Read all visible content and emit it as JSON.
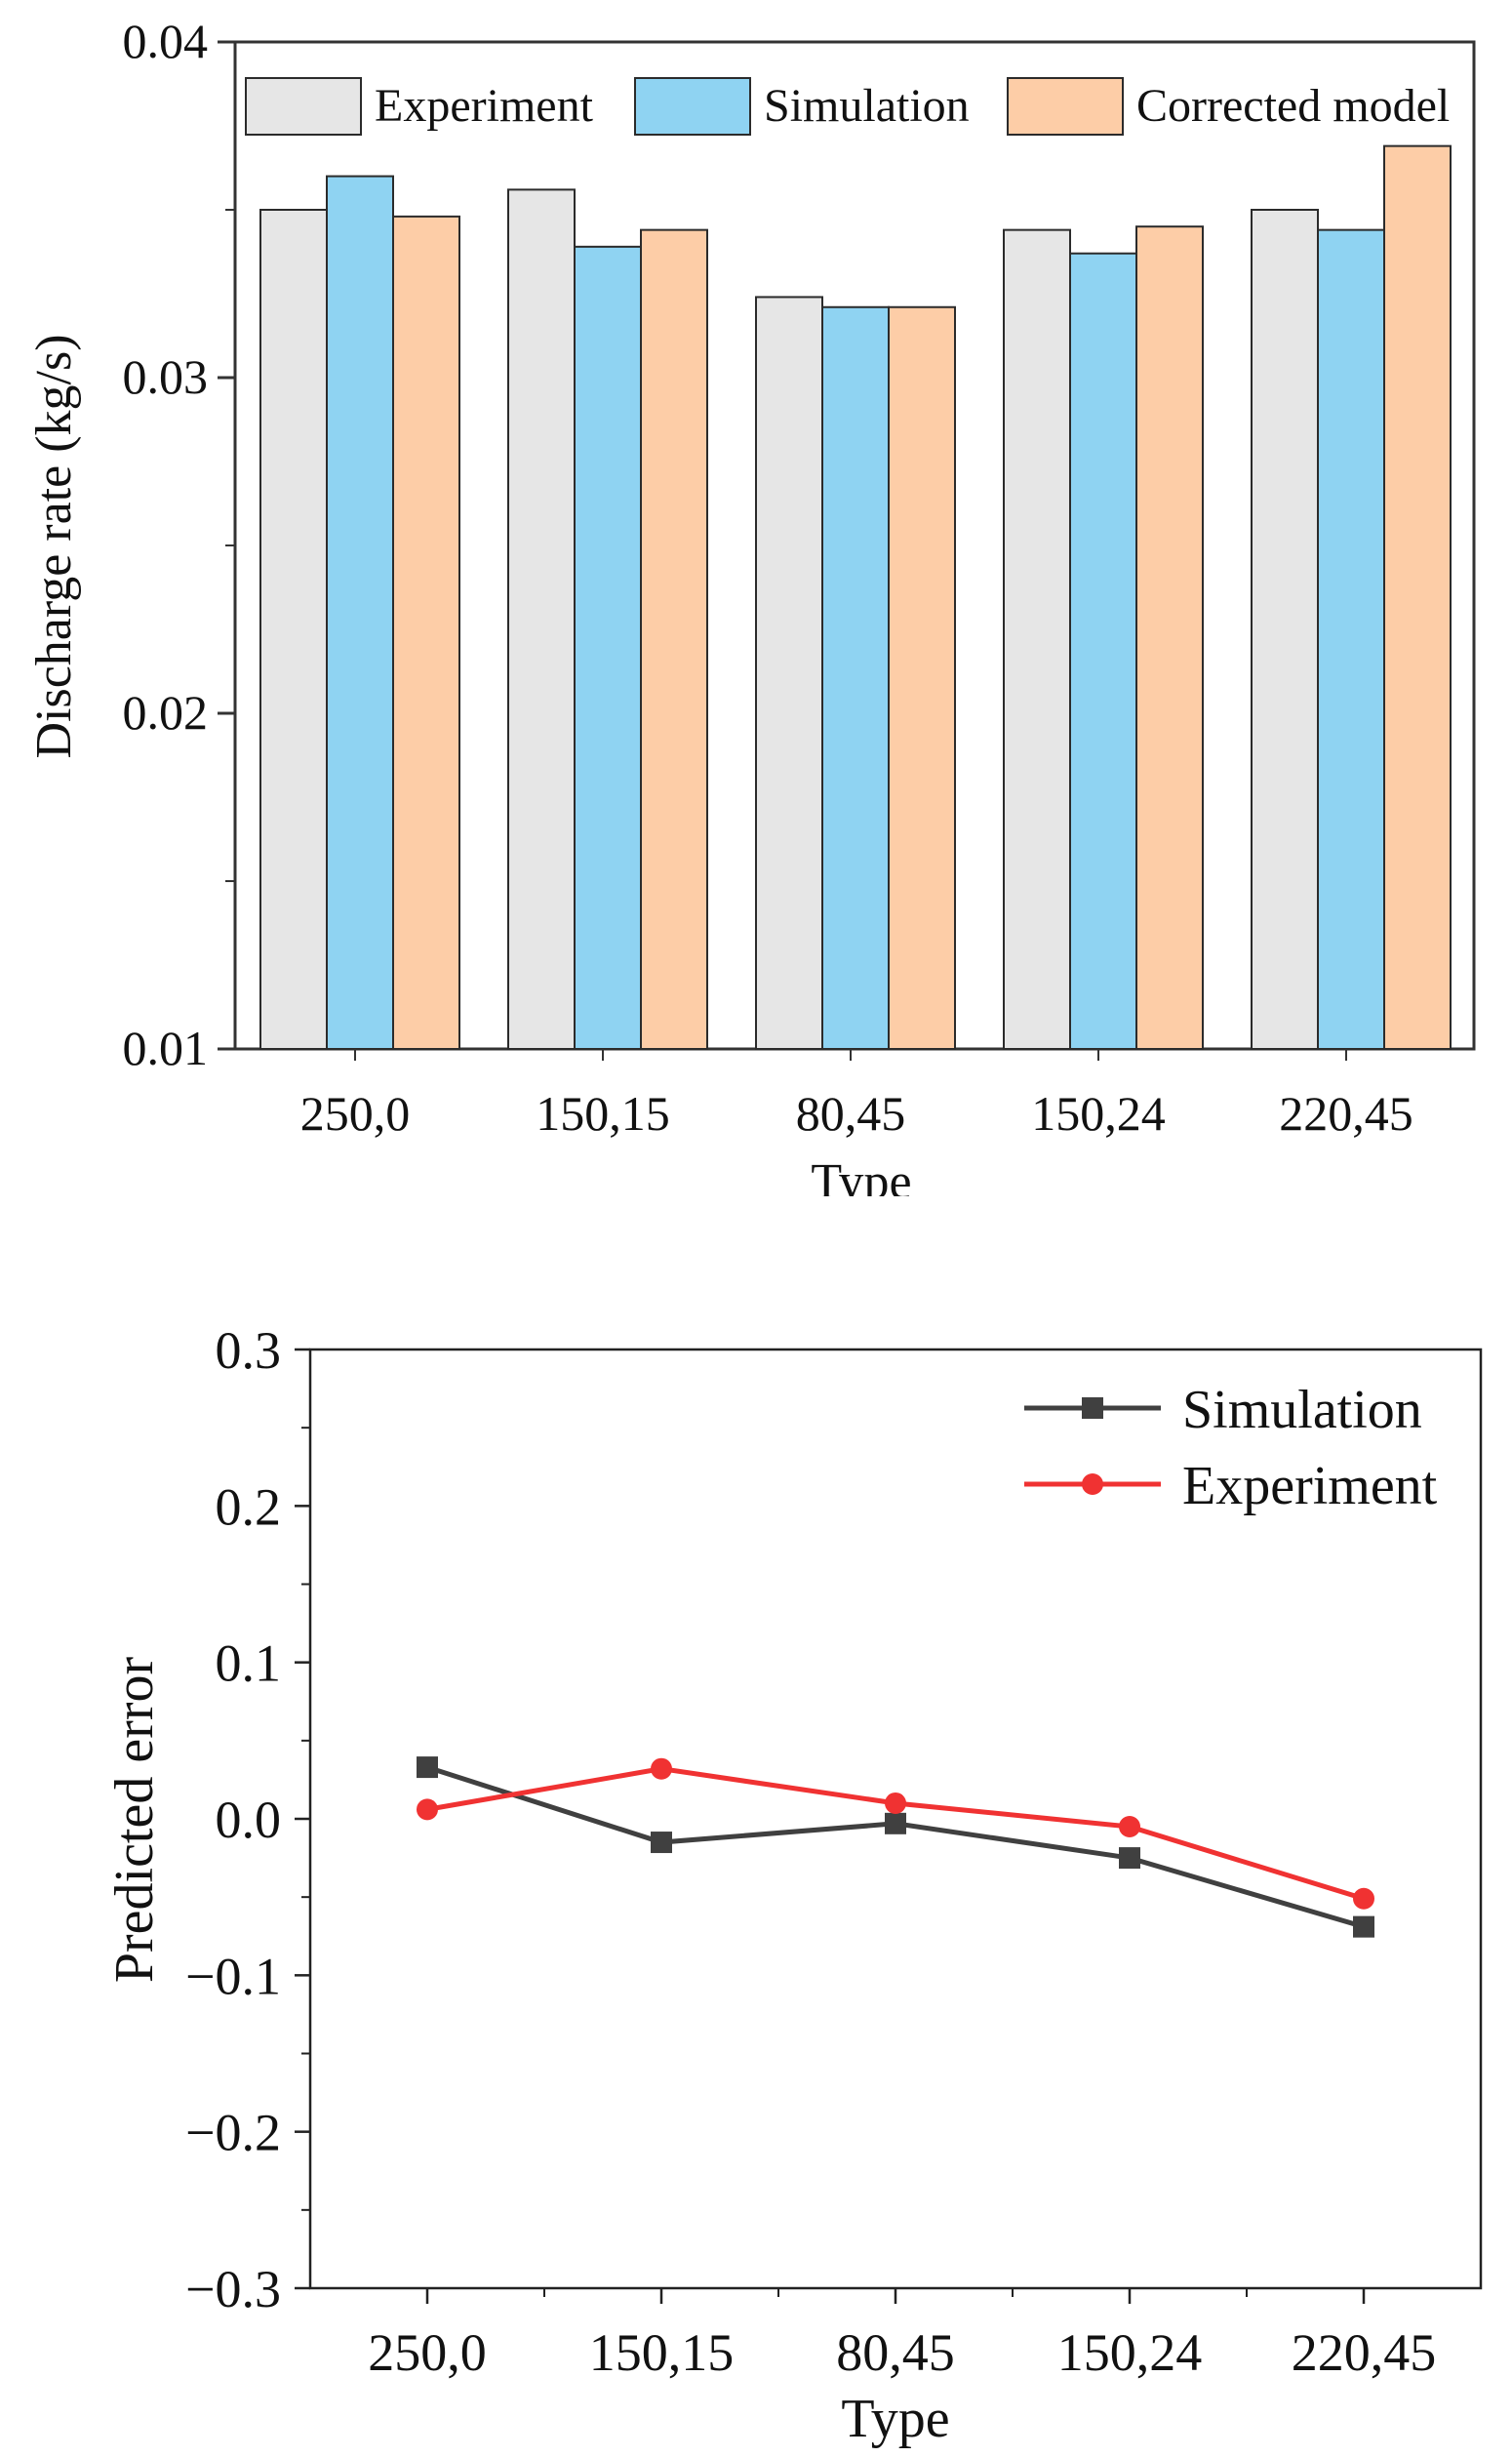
{
  "chart_data": [
    {
      "type": "bar",
      "title": "",
      "xlabel": "Type",
      "ylabel": "Discharge rate (kg/s)",
      "categories": [
        "250,0",
        "150,15",
        "80,45",
        "150,24",
        "220,45"
      ],
      "ylim": [
        0.01,
        0.04
      ],
      "yticks": [
        "0.01",
        "0.02",
        "0.03",
        "0.04"
      ],
      "legend_position": "top",
      "series": [
        {
          "name": "Experiment",
          "values": [
            0.035,
            0.0356,
            0.0324,
            0.0344,
            0.035
          ],
          "color": "#e6e6e6"
        },
        {
          "name": "Simulation",
          "values": [
            0.036,
            0.0339,
            0.0321,
            0.0337,
            0.0344
          ],
          "color": "#8fd3f2"
        },
        {
          "name": "Corrected model",
          "values": [
            0.0348,
            0.0344,
            0.0321,
            0.0345,
            0.0369
          ],
          "color": "#fdcda7"
        }
      ]
    },
    {
      "type": "line",
      "title": "",
      "xlabel": "Type",
      "ylabel": "Predicted error",
      "categories": [
        "250,0",
        "150,15",
        "80,45",
        "150,24",
        "220,45"
      ],
      "ylim": [
        -0.3,
        0.3
      ],
      "yticks": [
        "−0.3",
        "−0.2",
        "−0.1",
        "0.0",
        "0.1",
        "0.2",
        "0.3"
      ],
      "legend_position": "top-right",
      "series": [
        {
          "name": "Simulation",
          "values": [
            0.033,
            -0.015,
            -0.003,
            -0.025,
            -0.069
          ],
          "color": "#404040",
          "marker": "square"
        },
        {
          "name": "Experiment",
          "values": [
            0.006,
            0.032,
            0.01,
            -0.005,
            -0.051
          ],
          "color": "#f03232",
          "marker": "circle"
        }
      ]
    }
  ]
}
